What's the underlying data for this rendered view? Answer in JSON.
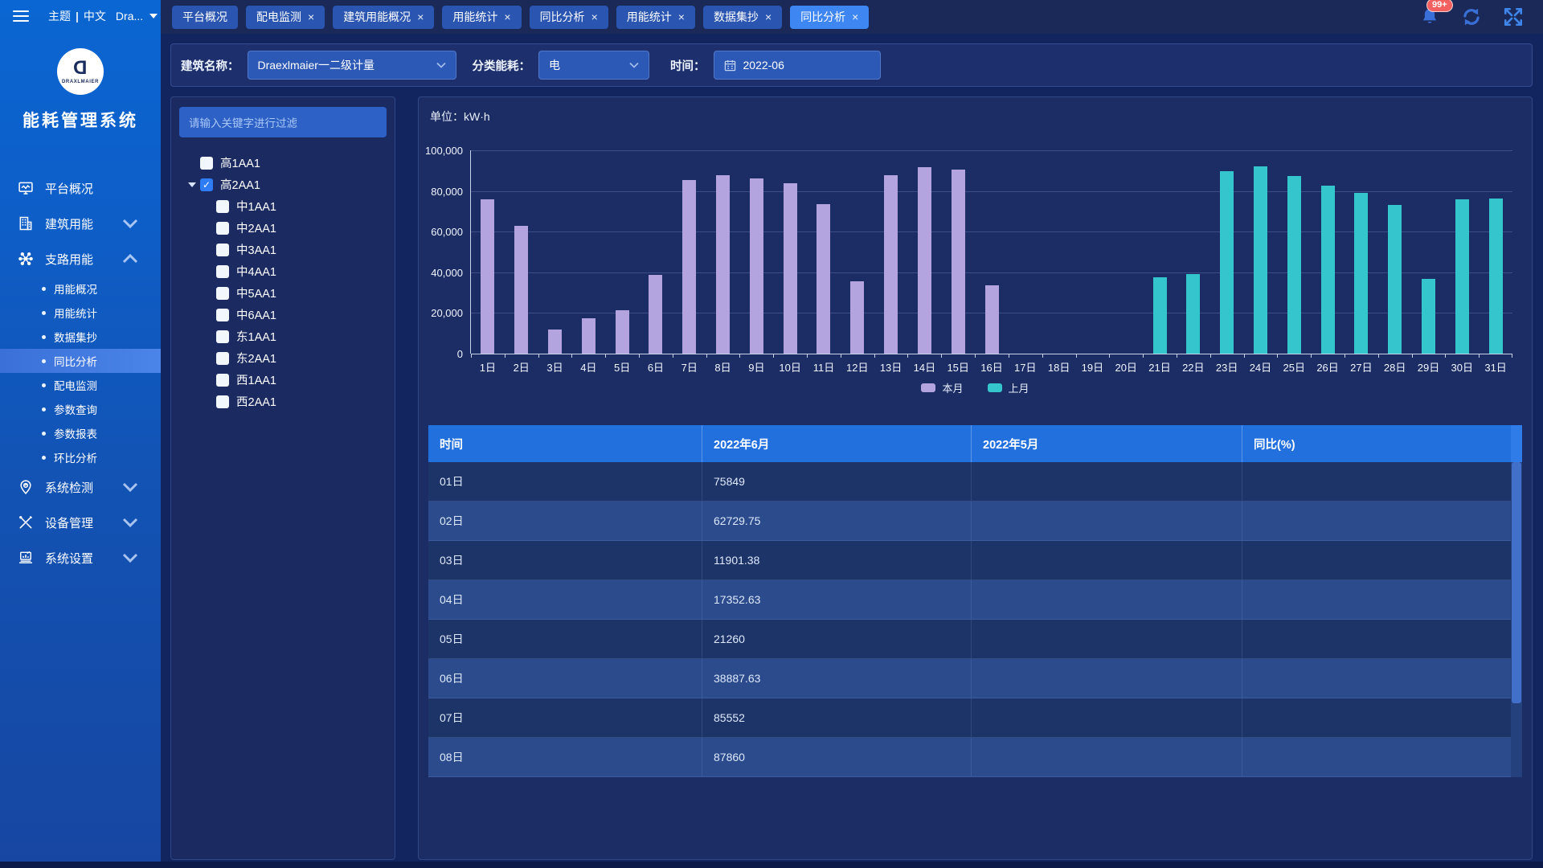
{
  "topbar": {
    "theme": "主题",
    "lang": "中文",
    "user": "Dra...",
    "badge": "99+",
    "close_glyph": "×"
  },
  "sidebar": {
    "logo_letter": "D",
    "logo_brand": "DRAXLMAIER",
    "app_title": "能耗管理系统",
    "items": [
      {
        "label": "平台概况",
        "icon": "platform-icon"
      },
      {
        "label": "建筑用能",
        "icon": "building-icon",
        "chevron": "down"
      },
      {
        "label": "支路用能",
        "icon": "branch-icon",
        "chevron": "up",
        "children": [
          {
            "label": "用能概况"
          },
          {
            "label": "用能统计"
          },
          {
            "label": "数据集抄"
          },
          {
            "label": "同比分析",
            "active": true
          },
          {
            "label": "配电监测"
          },
          {
            "label": "参数查询"
          },
          {
            "label": "参数报表"
          },
          {
            "label": "环比分析"
          }
        ]
      },
      {
        "label": "系统检测",
        "icon": "system-check-icon",
        "chevron": "down"
      },
      {
        "label": "设备管理",
        "icon": "device-icon",
        "chevron": "down"
      },
      {
        "label": "系统设置",
        "icon": "settings-icon",
        "chevron": "down"
      }
    ]
  },
  "tabs": [
    {
      "label": "平台概况",
      "closable": false,
      "active": false
    },
    {
      "label": "配电监测",
      "closable": true,
      "active": false
    },
    {
      "label": "建筑用能概况",
      "closable": true,
      "active": false
    },
    {
      "label": "用能统计",
      "closable": true,
      "active": false
    },
    {
      "label": "同比分析",
      "closable": true,
      "active": false
    },
    {
      "label": "用能统计",
      "closable": true,
      "active": false
    },
    {
      "label": "数据集抄",
      "closable": true,
      "active": false
    },
    {
      "label": "同比分析",
      "closable": true,
      "active": true
    }
  ],
  "filters": {
    "building_label": "建筑名称：",
    "building_value": "Draexlmaier一二级计量",
    "energy_label": "分类能耗：",
    "energy_value": "电",
    "time_label": "时间：",
    "time_value": "2022-06"
  },
  "tree": {
    "search_placeholder": "请输入关键字进行过滤",
    "nodes": [
      {
        "label": "高1AA1",
        "level": 0,
        "checked": false
      },
      {
        "label": "高2AA1",
        "level": 0,
        "checked": true,
        "expanded": true
      },
      {
        "label": "中1AA1",
        "level": 1,
        "checked": false
      },
      {
        "label": "中2AA1",
        "level": 1,
        "checked": false
      },
      {
        "label": "中3AA1",
        "level": 1,
        "checked": false
      },
      {
        "label": "中4AA1",
        "level": 1,
        "checked": false
      },
      {
        "label": "中5AA1",
        "level": 1,
        "checked": false
      },
      {
        "label": "中6AA1",
        "level": 1,
        "checked": false
      },
      {
        "label": "东1AA1",
        "level": 1,
        "checked": false
      },
      {
        "label": "东2AA1",
        "level": 1,
        "checked": false
      },
      {
        "label": "西1AA1",
        "level": 1,
        "checked": false
      },
      {
        "label": "西2AA1",
        "level": 1,
        "checked": false
      }
    ]
  },
  "chart_data": {
    "type": "bar",
    "unit_label": "单位：kW·h",
    "categories": [
      "1日",
      "2日",
      "3日",
      "4日",
      "5日",
      "6日",
      "7日",
      "8日",
      "9日",
      "10日",
      "11日",
      "12日",
      "13日",
      "14日",
      "15日",
      "16日",
      "17日",
      "18日",
      "19日",
      "20日",
      "21日",
      "22日",
      "23日",
      "24日",
      "25日",
      "26日",
      "27日",
      "28日",
      "29日",
      "30日",
      "31日"
    ],
    "series": [
      {
        "name": "本月",
        "color": "#b3a3de",
        "values": [
          75849,
          62729.75,
          11901.38,
          17352.63,
          21260,
          38887.63,
          85552,
          87860,
          86200,
          83700,
          73400,
          35500,
          87600,
          91800,
          90500,
          33800,
          0,
          0,
          0,
          0,
          0,
          0,
          0,
          0,
          0,
          0,
          0,
          0,
          0,
          0,
          0
        ]
      },
      {
        "name": "上月",
        "color": "#35c6cd",
        "values": [
          0,
          0,
          0,
          0,
          0,
          0,
          0,
          0,
          0,
          0,
          0,
          0,
          0,
          0,
          0,
          0,
          0,
          0,
          0,
          0,
          37400,
          39300,
          89600,
          92300,
          87300,
          82600,
          79000,
          73000,
          36800,
          75900,
          76300
        ]
      }
    ],
    "ylim": [
      0,
      100000
    ],
    "yticks": [
      "100,000",
      "80,000",
      "60,000",
      "40,000",
      "20,000",
      "0"
    ],
    "grid": true,
    "legend_position": "bottom"
  },
  "table": {
    "columns": [
      "时间",
      "2022年6月",
      "2022年5月",
      "同比(%)"
    ],
    "rows": [
      [
        "01日",
        "75849",
        "",
        ""
      ],
      [
        "02日",
        "62729.75",
        "",
        ""
      ],
      [
        "03日",
        "11901.38",
        "",
        ""
      ],
      [
        "04日",
        "17352.63",
        "",
        ""
      ],
      [
        "05日",
        "21260",
        "",
        ""
      ],
      [
        "06日",
        "38887.63",
        "",
        ""
      ],
      [
        "07日",
        "85552",
        "",
        ""
      ],
      [
        "08日",
        "87860",
        "",
        ""
      ]
    ]
  }
}
